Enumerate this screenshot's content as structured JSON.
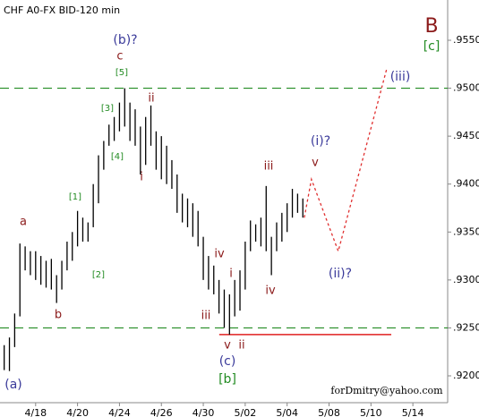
{
  "chart_data": {
    "type": "hilo",
    "title": "CHF A0-FX BID-120 min",
    "bar_color": "#000000",
    "x": [
      -1.5,
      -1.25,
      -1,
      -0.75,
      -0.5,
      -0.25,
      0,
      0.25,
      0.5,
      0.75,
      1,
      1.25,
      1.5,
      1.75,
      2,
      2.25,
      2.5,
      2.75,
      3,
      3.25,
      3.5,
      3.75,
      4,
      4.25,
      4.5,
      4.75,
      5,
      5.25,
      5.5,
      5.75,
      6,
      6.25,
      6.5,
      6.75,
      7,
      7.25,
      7.5,
      7.75,
      8,
      8.25,
      8.5,
      8.75,
      9,
      9.25,
      9.5,
      9.75,
      10,
      10.25,
      10.5,
      10.75,
      11,
      11.25,
      11.5,
      11.75,
      12,
      12.25,
      12.5,
      12.75
    ],
    "high": [
      0.9232,
      0.924,
      0.9265,
      0.9338,
      0.9335,
      0.933,
      0.933,
      0.9325,
      0.932,
      0.9322,
      0.9305,
      0.932,
      0.934,
      0.935,
      0.9372,
      0.9365,
      0.936,
      0.94,
      0.943,
      0.9445,
      0.9462,
      0.947,
      0.9485,
      0.95,
      0.9485,
      0.9478,
      0.946,
      0.947,
      0.9482,
      0.9455,
      0.945,
      0.944,
      0.9425,
      0.941,
      0.939,
      0.9385,
      0.938,
      0.9372,
      0.9345,
      0.9325,
      0.9315,
      0.93,
      0.929,
      0.9285,
      0.93,
      0.931,
      0.934,
      0.9362,
      0.9358,
      0.9365,
      0.9398,
      0.9345,
      0.936,
      0.937,
      0.938,
      0.9395,
      0.939,
      0.9385
    ],
    "low": [
      0.9206,
      0.9205,
      0.923,
      0.9262,
      0.931,
      0.9305,
      0.93,
      0.9295,
      0.9292,
      0.929,
      0.9276,
      0.929,
      0.931,
      0.932,
      0.9335,
      0.934,
      0.934,
      0.9355,
      0.938,
      0.9415,
      0.944,
      0.9445,
      0.9455,
      0.946,
      0.9445,
      0.944,
      0.941,
      0.942,
      0.944,
      0.9415,
      0.9405,
      0.94,
      0.9395,
      0.937,
      0.936,
      0.9355,
      0.9345,
      0.9335,
      0.93,
      0.929,
      0.9285,
      0.9265,
      0.925,
      0.9243,
      0.9262,
      0.9268,
      0.929,
      0.933,
      0.934,
      0.9335,
      0.933,
      0.9305,
      0.933,
      0.934,
      0.935,
      0.9365,
      0.937,
      0.9365
    ],
    "projection": {
      "x": [
        12.82,
        13.16,
        14.44,
        16.75
      ],
      "values": [
        0.9365,
        0.9405,
        0.933,
        0.952
      ],
      "color": "#e03030"
    },
    "hlines": {
      "values": [
        0.95,
        0.925
      ],
      "color": "#228b22"
    },
    "support": {
      "value": 0.9243,
      "x": [
        8.76,
        16.97
      ],
      "color": "#e02020"
    },
    "xlim": [
      -1.7,
      19.66
    ],
    "ylim": [
      0.9172,
      0.9592
    ],
    "xticks": [
      {
        "value": 0,
        "label": "4/18"
      },
      {
        "value": 2,
        "label": "4/20"
      },
      {
        "value": 4,
        "label": "4/24"
      },
      {
        "value": 6,
        "label": "4/26"
      },
      {
        "value": 8,
        "label": "4/30"
      },
      {
        "value": 10,
        "label": "5/02"
      },
      {
        "value": 12,
        "label": "5/04"
      },
      {
        "value": 14,
        "label": "5/08"
      },
      {
        "value": 16,
        "label": "5/10"
      },
      {
        "value": 18,
        "label": "5/14"
      }
    ],
    "yticks": [
      {
        "value": 0.92,
        "label": ".9200"
      },
      {
        "value": 0.925,
        "label": ".9250"
      },
      {
        "value": 0.93,
        "label": ".9300"
      },
      {
        "value": 0.935,
        "label": ".9350"
      },
      {
        "value": 0.94,
        "label": ".9400"
      },
      {
        "value": 0.945,
        "label": ".9450"
      },
      {
        "value": 0.95,
        "label": ".9500"
      },
      {
        "value": 0.955,
        "label": ".9550"
      }
    ],
    "annotations": [
      {
        "text": "B",
        "color": "#8b1a1a"
      },
      {
        "text": "[c]",
        "color": "#228b22"
      },
      {
        "text": "(iii)",
        "color": "#3a3a9a"
      },
      {
        "text": "(b)?",
        "color": "#3a3a9a"
      },
      {
        "text": "c",
        "color": "#8b1a1a"
      },
      {
        "text": "[5]",
        "color": "#228b22"
      },
      {
        "text": "ii",
        "color": "#8b1a1a"
      },
      {
        "text": "[3]",
        "color": "#228b22"
      },
      {
        "text": "[4]",
        "color": "#228b22"
      },
      {
        "text": "i",
        "color": "#8b1a1a"
      },
      {
        "text": "[1]",
        "color": "#228b22"
      },
      {
        "text": "a",
        "color": "#8b1a1a"
      },
      {
        "text": "[2]",
        "color": "#228b22"
      },
      {
        "text": "b",
        "color": "#8b1a1a"
      },
      {
        "text": "(a)",
        "color": "#3a3a9a"
      },
      {
        "text": "(i)?",
        "color": "#3a3a9a"
      },
      {
        "text": "v",
        "color": "#8b1a1a"
      },
      {
        "text": "iii",
        "color": "#8b1a1a"
      },
      {
        "text": "iv",
        "color": "#8b1a1a"
      },
      {
        "text": "i",
        "color": "#8b1a1a"
      },
      {
        "text": "iv",
        "color": "#8b1a1a"
      },
      {
        "text": "(ii)?",
        "color": "#3a3a9a"
      },
      {
        "text": "iii",
        "color": "#8b1a1a"
      },
      {
        "text": "v",
        "color": "#8b1a1a"
      },
      {
        "text": "ii",
        "color": "#8b1a1a"
      },
      {
        "text": "(c)",
        "color": "#3a3a9a"
      },
      {
        "text": "[b]",
        "color": "#228b22"
      }
    ],
    "footer": "forDmitry@yahoo.com"
  }
}
